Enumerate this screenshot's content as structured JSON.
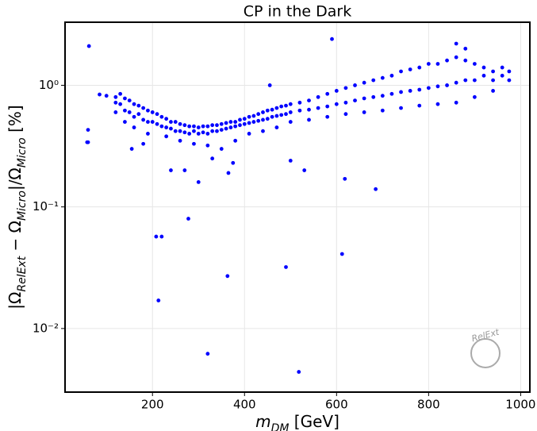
{
  "chart_data": {
    "type": "scatter",
    "title": "CP in the Dark",
    "x_label": [
      "m",
      "DM",
      " [GeV]"
    ],
    "y_label": [
      "|Ω",
      "RelExt",
      " − Ω",
      "Micro",
      "|/Ω",
      "Micro",
      " [%]"
    ],
    "logo_text": "RelExt",
    "color": "#0000ff",
    "log_y": true,
    "grid": true,
    "xlim": [
      10,
      1020
    ],
    "ylim": [
      0.003,
      3.3
    ],
    "xticks": [
      200,
      400,
      600,
      800,
      1000
    ],
    "yticks": [
      {
        "value": 0.01,
        "label": "10⁻²"
      },
      {
        "value": 0.1,
        "label": "10⁻¹"
      },
      {
        "value": 1,
        "label": "10⁰"
      }
    ],
    "x": [
      62,
      60,
      58,
      60,
      208,
      220,
      213,
      278,
      320,
      363,
      490,
      518,
      612,
      618,
      685,
      590,
      455,
      180,
      155,
      240,
      270,
      300,
      330,
      365,
      375,
      530,
      500,
      860,
      880,
      100,
      85,
      120,
      120,
      120,
      130,
      130,
      140,
      140,
      140,
      150,
      150,
      160,
      160,
      160,
      170,
      170,
      180,
      180,
      190,
      190,
      190,
      200,
      200,
      210,
      210,
      220,
      220,
      230,
      230,
      230,
      240,
      240,
      250,
      250,
      260,
      260,
      260,
      270,
      270,
      280,
      280,
      290,
      290,
      290,
      300,
      300,
      310,
      310,
      320,
      320,
      320,
      330,
      330,
      340,
      340,
      350,
      350,
      350,
      360,
      360,
      370,
      370,
      380,
      380,
      380,
      390,
      390,
      400,
      400,
      410,
      410,
      410,
      420,
      420,
      430,
      430,
      440,
      440,
      440,
      450,
      450,
      460,
      460,
      470,
      470,
      470,
      480,
      480,
      490,
      490,
      500,
      500,
      500,
      520,
      520,
      540,
      540,
      540,
      560,
      560,
      580,
      580,
      580,
      600,
      600,
      620,
      620,
      620,
      640,
      640,
      660,
      660,
      660,
      680,
      680,
      700,
      700,
      700,
      720,
      720,
      740,
      740,
      740,
      760,
      760,
      780,
      780,
      780,
      800,
      800,
      820,
      820,
      820,
      840,
      840,
      860,
      860,
      860,
      880,
      880,
      900,
      900,
      900,
      920,
      920,
      940,
      940,
      940,
      960,
      960,
      975,
      975
    ],
    "values": [
      2.1,
      0.43,
      0.34,
      0.34,
      0.057,
      0.057,
      0.017,
      0.08,
      0.0062,
      0.027,
      0.032,
      0.0044,
      0.041,
      0.17,
      0.14,
      2.4,
      1.0,
      0.33,
      0.3,
      0.2,
      0.2,
      0.16,
      0.25,
      0.19,
      0.23,
      0.2,
      0.24,
      2.2,
      2.0,
      0.82,
      0.84,
      0.8,
      0.72,
      0.6,
      0.85,
      0.7,
      0.78,
      0.62,
      0.5,
      0.75,
      0.6,
      0.7,
      0.55,
      0.45,
      0.68,
      0.58,
      0.65,
      0.52,
      0.62,
      0.5,
      0.4,
      0.6,
      0.5,
      0.58,
      0.48,
      0.55,
      0.46,
      0.53,
      0.45,
      0.38,
      0.5,
      0.44,
      0.5,
      0.42,
      0.48,
      0.42,
      0.35,
      0.47,
      0.41,
      0.46,
      0.4,
      0.46,
      0.42,
      0.33,
      0.45,
      0.4,
      0.46,
      0.41,
      0.46,
      0.4,
      0.32,
      0.47,
      0.42,
      0.47,
      0.42,
      0.48,
      0.43,
      0.3,
      0.49,
      0.44,
      0.5,
      0.45,
      0.5,
      0.46,
      0.35,
      0.52,
      0.47,
      0.53,
      0.48,
      0.55,
      0.49,
      0.4,
      0.56,
      0.5,
      0.58,
      0.51,
      0.6,
      0.52,
      0.42,
      0.62,
      0.53,
      0.63,
      0.55,
      0.65,
      0.56,
      0.45,
      0.67,
      0.57,
      0.68,
      0.58,
      0.7,
      0.6,
      0.5,
      0.72,
      0.62,
      0.75,
      0.63,
      0.52,
      0.8,
      0.65,
      0.85,
      0.67,
      0.55,
      0.9,
      0.7,
      0.95,
      0.72,
      0.58,
      1.0,
      0.75,
      1.05,
      0.78,
      0.6,
      1.1,
      0.8,
      1.15,
      0.82,
      0.62,
      1.2,
      0.85,
      1.3,
      0.88,
      0.65,
      1.35,
      0.9,
      1.4,
      0.92,
      0.68,
      1.5,
      0.95,
      1.5,
      0.98,
      0.7,
      1.6,
      1.0,
      1.7,
      1.05,
      0.72,
      1.6,
      1.1,
      1.5,
      1.1,
      0.8,
      1.4,
      1.2,
      1.3,
      1.1,
      0.9,
      1.4,
      1.2,
      1.3,
      1.1
    ]
  }
}
